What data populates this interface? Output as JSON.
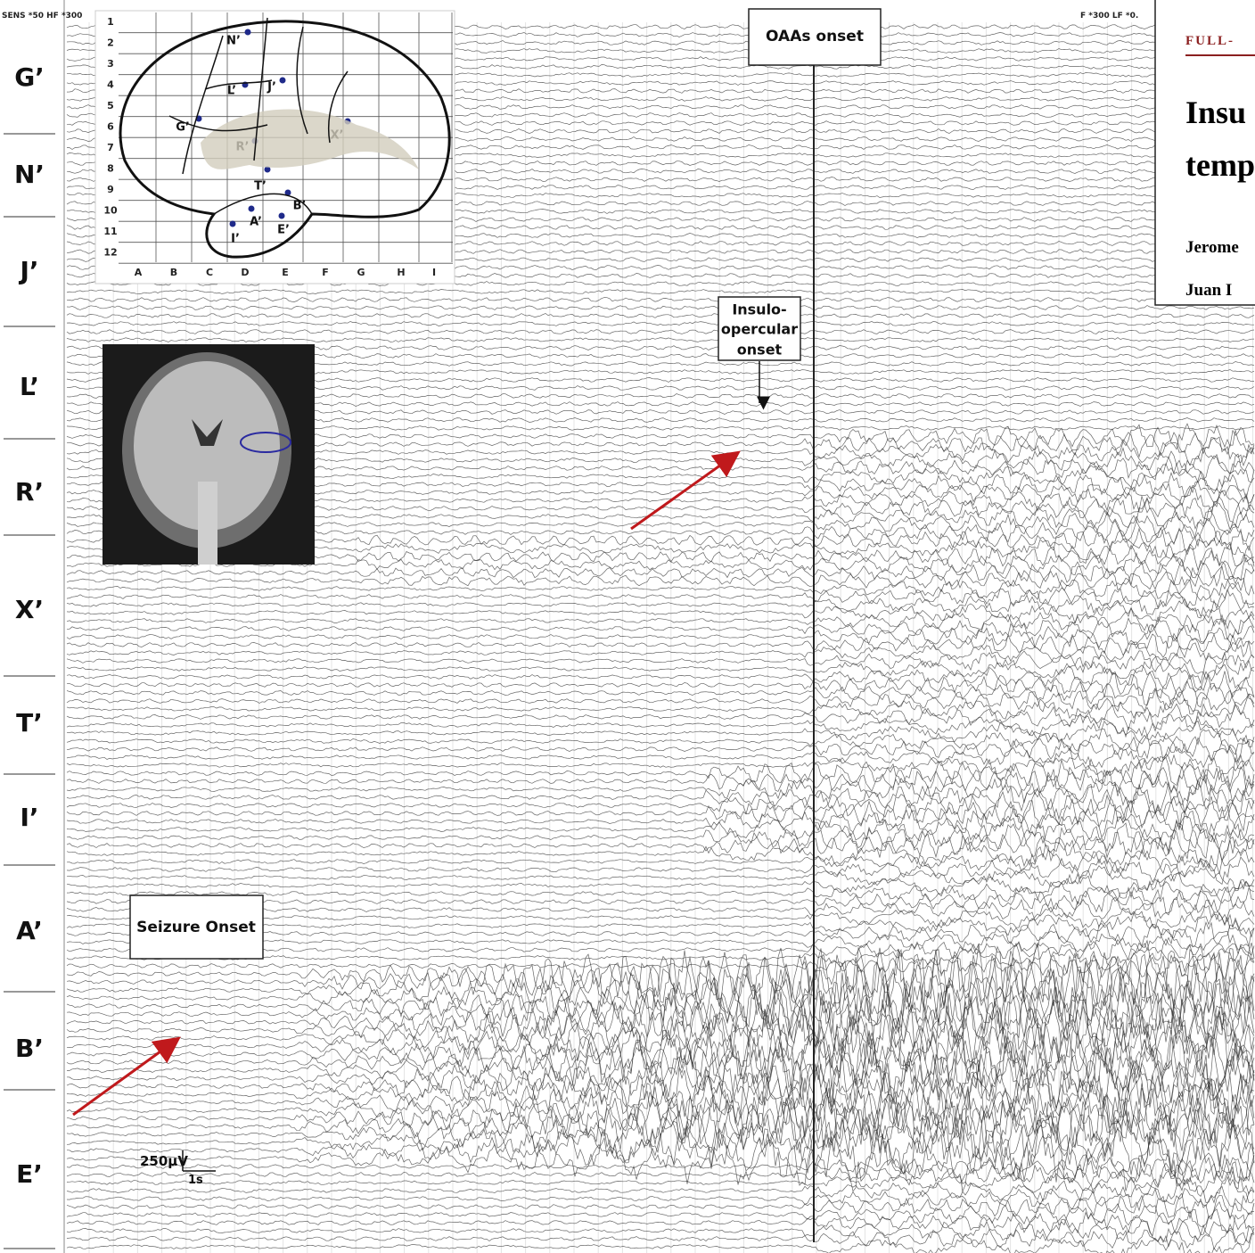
{
  "header": {
    "left": "SENS *50  HF *300",
    "right": "F *300  LF *0."
  },
  "channels": [
    "G’",
    "N’",
    "J’",
    "L’",
    "R’",
    "X’",
    "T’",
    "I’",
    "A’",
    "B’",
    "E’"
  ],
  "diagram": {
    "rows": [
      "1",
      "2",
      "3",
      "4",
      "5",
      "6",
      "7",
      "8",
      "9",
      "10",
      "11",
      "12"
    ],
    "columns": [
      "A",
      "B",
      "C",
      "D",
      "E",
      "F",
      "G",
      "H",
      "I"
    ],
    "electrodes": [
      "N’",
      "L’",
      "J’",
      "G’",
      "R’",
      "X’",
      "T’",
      "B’",
      "A’",
      "E’",
      "I’"
    ]
  },
  "annotations": {
    "oaas_onset": "OAAs onset",
    "insulo_opercular_onset": [
      "Insulo-",
      "opercular",
      "onset"
    ],
    "seizure_onset": "Seizure Onset",
    "scale_amplitude": "250µV",
    "scale_time": "1s"
  },
  "article": {
    "section": "FULL-",
    "title_lines": [
      "Insu",
      "temp"
    ],
    "author_lines": [
      "Jerome",
      "Juan I"
    ]
  }
}
